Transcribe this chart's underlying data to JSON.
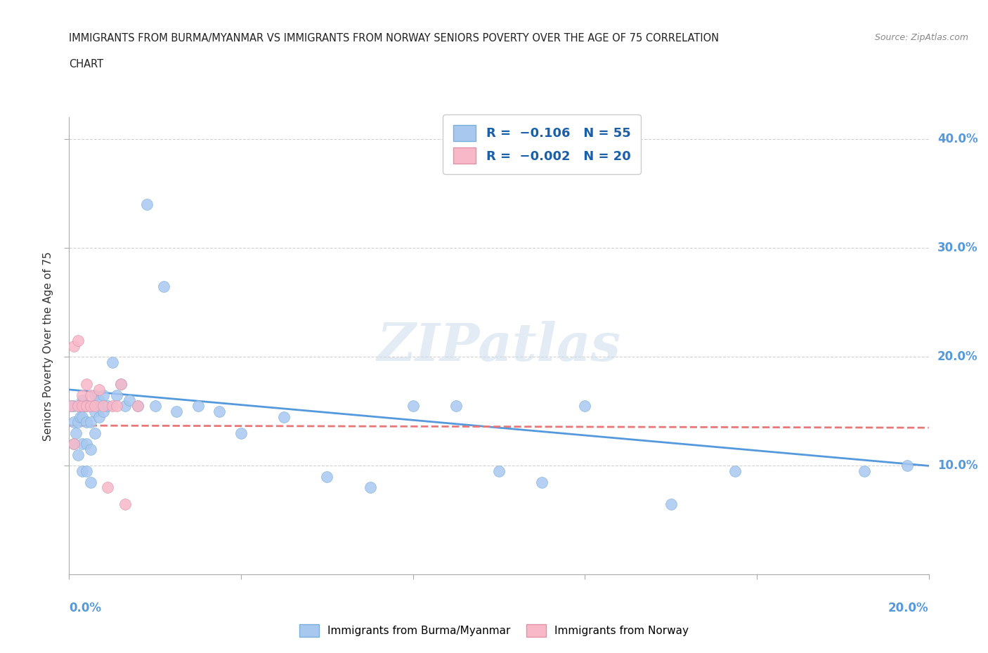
{
  "title_line1": "IMMIGRANTS FROM BURMA/MYANMAR VS IMMIGRANTS FROM NORWAY SENIORS POVERTY OVER THE AGE OF 75 CORRELATION",
  "title_line2": "CHART",
  "source": "Source: ZipAtlas.com",
  "ylabel": "Seniors Poverty Over the Age of 75",
  "color_burma": "#a8c8f0",
  "color_norway": "#f8b8c8",
  "edge_burma": "#7ab0d8",
  "edge_norway": "#e090a8",
  "line_color_burma": "#5599dd",
  "line_color_norway": "#e87878",
  "xlim": [
    0.0,
    0.2
  ],
  "ylim": [
    0.0,
    0.42
  ],
  "watermark": "ZIPatlas",
  "burma_x": [
    0.0005,
    0.001,
    0.001,
    0.001,
    0.0015,
    0.002,
    0.002,
    0.002,
    0.0025,
    0.003,
    0.003,
    0.003,
    0.003,
    0.0035,
    0.004,
    0.004,
    0.004,
    0.004,
    0.005,
    0.005,
    0.005,
    0.005,
    0.006,
    0.006,
    0.006,
    0.007,
    0.007,
    0.008,
    0.008,
    0.009,
    0.01,
    0.011,
    0.012,
    0.013,
    0.014,
    0.016,
    0.018,
    0.02,
    0.022,
    0.025,
    0.03,
    0.035,
    0.04,
    0.05,
    0.06,
    0.07,
    0.08,
    0.09,
    0.1,
    0.11,
    0.12,
    0.14,
    0.155,
    0.185,
    0.195
  ],
  "burma_y": [
    0.155,
    0.12,
    0.14,
    0.155,
    0.13,
    0.11,
    0.14,
    0.155,
    0.145,
    0.095,
    0.12,
    0.145,
    0.16,
    0.155,
    0.095,
    0.12,
    0.14,
    0.155,
    0.085,
    0.115,
    0.14,
    0.155,
    0.13,
    0.15,
    0.165,
    0.145,
    0.16,
    0.15,
    0.165,
    0.155,
    0.195,
    0.165,
    0.175,
    0.155,
    0.16,
    0.155,
    0.34,
    0.155,
    0.265,
    0.15,
    0.155,
    0.15,
    0.13,
    0.145,
    0.09,
    0.08,
    0.155,
    0.155,
    0.095,
    0.085,
    0.155,
    0.065,
    0.095,
    0.095,
    0.1
  ],
  "norway_x": [
    0.0005,
    0.001,
    0.001,
    0.002,
    0.002,
    0.003,
    0.003,
    0.004,
    0.004,
    0.005,
    0.005,
    0.006,
    0.007,
    0.008,
    0.009,
    0.01,
    0.011,
    0.012,
    0.013,
    0.016
  ],
  "norway_y": [
    0.155,
    0.12,
    0.21,
    0.155,
    0.215,
    0.155,
    0.165,
    0.155,
    0.175,
    0.155,
    0.165,
    0.155,
    0.17,
    0.155,
    0.08,
    0.155,
    0.155,
    0.175,
    0.065,
    0.155
  ],
  "burma_line_x": [
    0.0,
    0.2
  ],
  "burma_line_y": [
    0.17,
    0.1
  ],
  "norway_line_x": [
    0.0,
    0.2
  ],
  "norway_line_y": [
    0.137,
    0.135
  ]
}
